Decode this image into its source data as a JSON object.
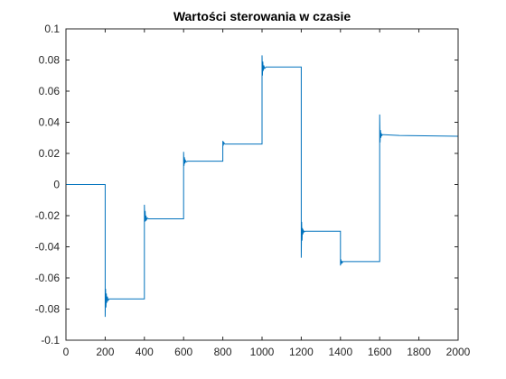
{
  "chart_data": {
    "type": "line",
    "title": "Wartości sterowania w czasie",
    "xlabel": "",
    "ylabel": "",
    "xlim": [
      0,
      2000
    ],
    "ylim": [
      -0.1,
      0.1
    ],
    "grid": false,
    "line_color": "#0072BD",
    "x_ticks": [
      0,
      200,
      400,
      600,
      800,
      1000,
      1200,
      1400,
      1600,
      1800,
      2000
    ],
    "y_ticks": [
      -0.1,
      -0.08,
      -0.06,
      -0.04,
      -0.02,
      0,
      0.02,
      0.04,
      0.06,
      0.08,
      0.1
    ],
    "x_tick_labels": [
      "0",
      "200",
      "400",
      "600",
      "800",
      "1000",
      "1200",
      "1400",
      "1600",
      "1800",
      "2000"
    ],
    "y_tick_labels": [
      "-0.1",
      "-0.08",
      "-0.06",
      "-0.04",
      "-0.02",
      "0",
      "0.02",
      "0.04",
      "0.06",
      "0.08",
      "0.1"
    ],
    "series": [
      {
        "x": [
          0,
          200,
          200,
          202,
          204,
          206,
          208,
          211,
          215,
          220,
          400,
          400,
          402,
          404,
          406,
          408,
          411,
          415,
          420,
          600,
          600,
          602,
          604,
          606,
          609,
          613,
          620,
          800,
          800,
          802,
          805,
          810,
          1000,
          1000,
          1002,
          1004,
          1006,
          1009,
          1013,
          1020,
          1200,
          1200,
          1202,
          1204,
          1206,
          1208,
          1211,
          1215,
          1220,
          1400,
          1400,
          1402,
          1404,
          1406,
          1409,
          1413,
          1420,
          1600,
          1600,
          1602,
          1604,
          1606,
          1608,
          1611,
          1615,
          1620,
          1700,
          2000
        ],
        "y": [
          0,
          0,
          -0.085,
          -0.067,
          -0.079,
          -0.07,
          -0.076,
          -0.072,
          -0.0745,
          -0.0735,
          -0.0735,
          -0.013,
          -0.024,
          -0.017,
          -0.0235,
          -0.02,
          -0.0225,
          -0.0215,
          -0.022,
          -0.022,
          0.021,
          0.012,
          0.0175,
          0.0135,
          0.0155,
          0.0145,
          0.015,
          0.015,
          0.028,
          0.025,
          0.027,
          0.026,
          0.026,
          0.083,
          0.07,
          0.079,
          0.073,
          0.0765,
          0.0745,
          0.0755,
          0.0755,
          -0.047,
          -0.024,
          -0.036,
          -0.028,
          -0.032,
          -0.0295,
          -0.0305,
          -0.03,
          -0.03,
          -0.052,
          -0.048,
          -0.051,
          -0.049,
          -0.0502,
          -0.0495,
          -0.0495,
          -0.0495,
          0.045,
          0.027,
          0.035,
          0.03,
          0.033,
          0.0315,
          0.032,
          0.032,
          0.0315,
          0.031
        ]
      }
    ]
  }
}
